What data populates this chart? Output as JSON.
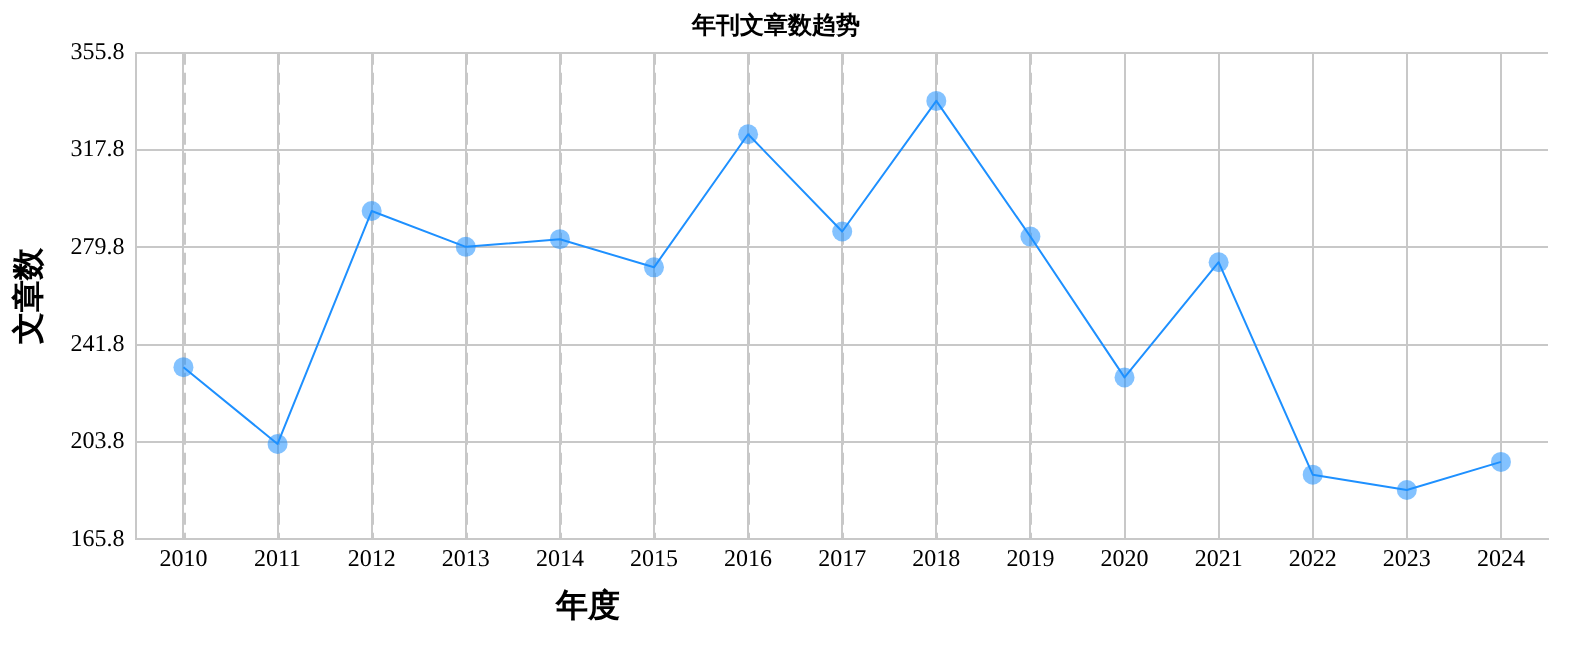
{
  "chart_data": {
    "type": "line",
    "title": "年刊文章数趋势",
    "xlabel": "年度",
    "ylabel": "文章数",
    "categories": [
      "2010",
      "2011",
      "2012",
      "2013",
      "2014",
      "2015",
      "2016",
      "2017",
      "2018",
      "2019",
      "2020",
      "2021",
      "2022",
      "2023",
      "2024"
    ],
    "series": [
      {
        "color": "#1e90ff",
        "values": [
          233,
          203,
          294,
          280,
          283,
          272,
          324,
          286,
          337,
          284,
          229,
          274,
          191,
          185,
          196
        ]
      }
    ],
    "ylim": [
      165.8,
      355.8
    ],
    "yticks": [
      165.8,
      203.8,
      241.8,
      279.8,
      317.8,
      355.8
    ],
    "grid": true,
    "legend": false,
    "marker": "circle",
    "line_style": "solid"
  }
}
